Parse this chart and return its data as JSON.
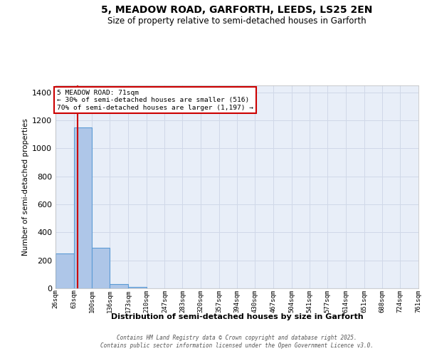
{
  "title": "5, MEADOW ROAD, GARFORTH, LEEDS, LS25 2EN",
  "subtitle": "Size of property relative to semi-detached houses in Garforth",
  "xlabel": "Distribution of semi-detached houses by size in Garforth",
  "ylabel": "Number of semi-detached properties",
  "bin_labels": [
    "26sqm",
    "63sqm",
    "100sqm",
    "136sqm",
    "173sqm",
    "210sqm",
    "247sqm",
    "283sqm",
    "320sqm",
    "357sqm",
    "394sqm",
    "430sqm",
    "467sqm",
    "504sqm",
    "541sqm",
    "577sqm",
    "614sqm",
    "651sqm",
    "688sqm",
    "724sqm",
    "761sqm"
  ],
  "bin_edges": [
    26,
    63,
    100,
    136,
    173,
    210,
    247,
    283,
    320,
    357,
    394,
    430,
    467,
    504,
    541,
    577,
    614,
    651,
    688,
    724,
    761
  ],
  "bar_heights": [
    250,
    1150,
    290,
    30,
    10,
    2,
    1,
    0,
    0,
    0,
    0,
    0,
    0,
    0,
    0,
    0,
    0,
    0,
    0,
    0
  ],
  "bar_color": "#aec6e8",
  "bar_edge_color": "#5b9bd5",
  "property_size": 71,
  "property_label": "5 MEADOW ROAD: 71sqm",
  "pct_smaller": 30,
  "n_smaller": 516,
  "pct_larger": 70,
  "n_larger": 1197,
  "red_line_color": "#cc0000",
  "annotation_box_color": "#cc0000",
  "ylim": [
    0,
    1450
  ],
  "yticks": [
    0,
    200,
    400,
    600,
    800,
    1000,
    1200,
    1400
  ],
  "grid_color": "#d0d8e8",
  "background_color": "#e8eef8",
  "footer_line1": "Contains HM Land Registry data © Crown copyright and database right 2025.",
  "footer_line2": "Contains public sector information licensed under the Open Government Licence v3.0."
}
